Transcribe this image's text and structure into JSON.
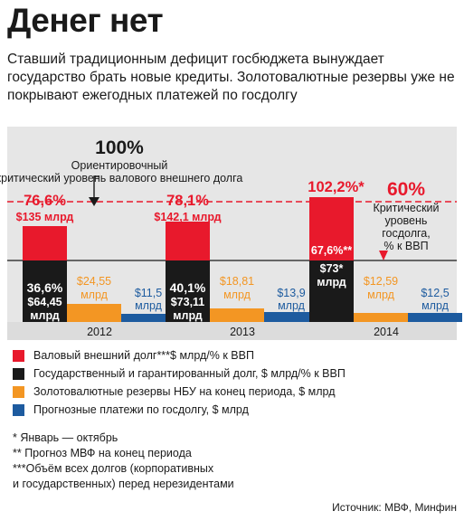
{
  "title": "Денег нет",
  "subtitle": "Ставший традиционным дефицит госбюджета вынуждает государство брать новые кредиты. Золотовалютные резервы уже не покрывают ежегодных платежей по госдолгу",
  "colors": {
    "external_debt": "#e8192c",
    "state_debt": "#1a1a1a",
    "reserves": "#f39623",
    "payments": "#1d5b9f",
    "panel_bg": "#e6e6e6",
    "axis_strip": "#dcdcdc"
  },
  "chart_data": {
    "type": "bar",
    "categories": [
      "2012",
      "2013",
      "2014"
    ],
    "series": [
      {
        "name": "Валовый внешний долг***$ млрд/% к ВВП",
        "key": "external_debt",
        "values": [
          135,
          142.1,
          null
        ],
        "value_labels": [
          "$135 млрд",
          "$142,1 млрд",
          ""
        ],
        "pct": [
          "76,6%",
          "78,1%",
          "102,2%*"
        ]
      },
      {
        "name": "Государственный и гарантированный долг, $ млрд/% к ВВП",
        "key": "state_debt",
        "values": [
          64.45,
          73.11,
          73
        ],
        "value_labels": [
          "$64,45 млрд",
          "$73,11 млрд",
          "$73* млрд"
        ],
        "pct": [
          "36,6%",
          "40,1%",
          "67,6%**"
        ]
      },
      {
        "name": "Золотовалютные резервы НБУ на конец периода, $ млрд",
        "key": "reserves",
        "values": [
          24.55,
          18.81,
          12.59
        ],
        "value_labels": [
          "$24,55 млрд",
          "$18,81 млрд",
          "$12,59 млрд"
        ]
      },
      {
        "name": "Прогнозные платежи по госдолгу, $ млрд",
        "key": "payments",
        "values": [
          11.5,
          13.9,
          12.5
        ],
        "value_labels": [
          "$11,5 млрд",
          "$13,9 млрд",
          "$12,5 млрд"
        ]
      }
    ],
    "thresholds": [
      {
        "value": "100%",
        "label": "Ориентировочный критический уровень валового внешнего долга"
      },
      {
        "value": "60%",
        "label": "Критический уровень госдолга, % к ВВП"
      }
    ]
  },
  "notes": [
    "* Январь — октябрь",
    "** Прогноз МВФ на конец периода",
    "***Объём всех долгов (корпоративных",
    "и государственных) перед нерезидентами"
  ],
  "source": "Источник: МВФ, Минфин"
}
